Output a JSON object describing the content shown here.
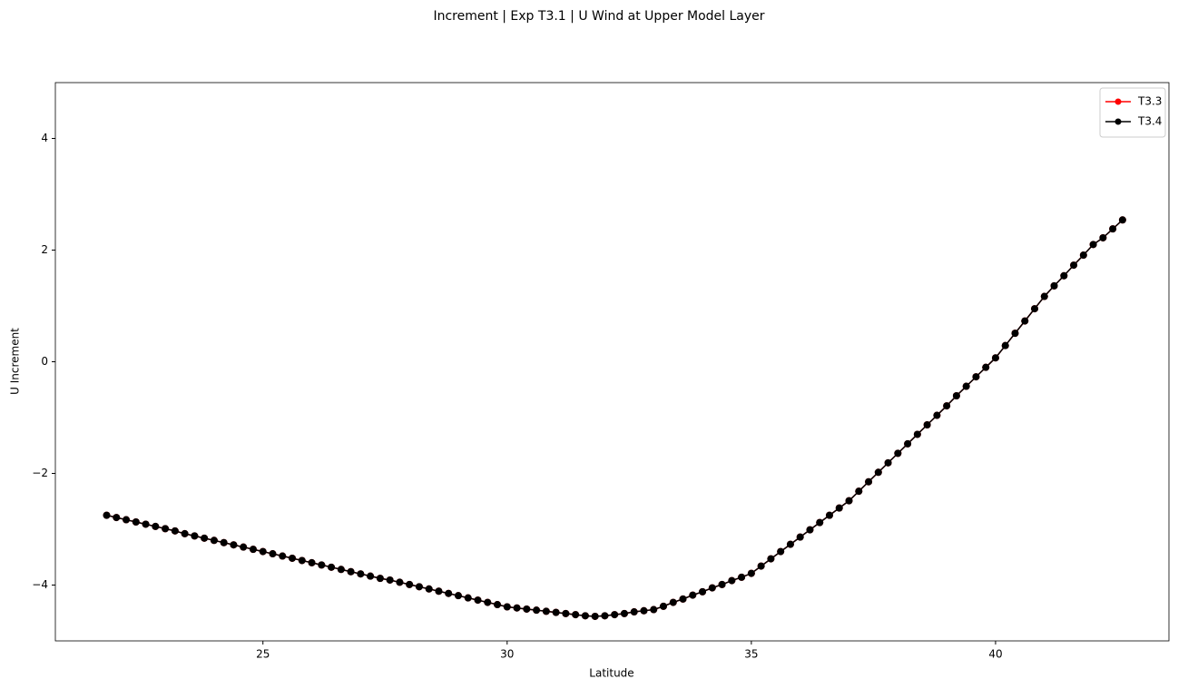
{
  "chart_data": {
    "type": "line",
    "title": "Increment | Exp T3.1 | U Wind at Upper Model Layer",
    "xlabel": "Latitude",
    "ylabel": "U Increment",
    "x": [
      21.8,
      22.0,
      22.2,
      22.4,
      22.6,
      22.8,
      23.0,
      23.2,
      23.4,
      23.6,
      23.8,
      24.0,
      24.2,
      24.4,
      24.6,
      24.8,
      25.0,
      25.2,
      25.4,
      25.6,
      25.8,
      26.0,
      26.2,
      26.4,
      26.6,
      26.8,
      27.0,
      27.2,
      27.4,
      27.6,
      27.8,
      28.0,
      28.2,
      28.4,
      28.6,
      28.8,
      29.0,
      29.2,
      29.4,
      29.6,
      29.8,
      30.0,
      30.2,
      30.4,
      30.6,
      30.8,
      31.0,
      31.2,
      31.4,
      31.6,
      31.8,
      32.0,
      32.2,
      32.4,
      32.6,
      32.8,
      33.0,
      33.2,
      33.4,
      33.6,
      33.8,
      34.0,
      34.2,
      34.4,
      34.6,
      34.8,
      35.0,
      35.2,
      35.4,
      35.6,
      35.8,
      36.0,
      36.2,
      36.4,
      36.6,
      36.8,
      37.0,
      37.2,
      37.4,
      37.6,
      37.8,
      38.0,
      38.2,
      38.4,
      38.6,
      38.8,
      39.0,
      39.2,
      39.4,
      39.6,
      39.8,
      40.0,
      40.2,
      40.4,
      40.6,
      40.8,
      41.0,
      41.2,
      41.4,
      41.6,
      41.8,
      42.0,
      42.2,
      42.4,
      42.6
    ],
    "series": [
      {
        "name": "T3.3",
        "color": "#ff0000",
        "values": [
          -2.75,
          -2.79,
          -2.83,
          -2.87,
          -2.91,
          -2.95,
          -2.99,
          -3.03,
          -3.08,
          -3.12,
          -3.16,
          -3.2,
          -3.24,
          -3.28,
          -3.32,
          -3.36,
          -3.4,
          -3.44,
          -3.48,
          -3.52,
          -3.56,
          -3.6,
          -3.64,
          -3.68,
          -3.72,
          -3.76,
          -3.8,
          -3.84,
          -3.88,
          -3.91,
          -3.95,
          -3.99,
          -4.03,
          -4.07,
          -4.11,
          -4.15,
          -4.19,
          -4.23,
          -4.27,
          -4.31,
          -4.35,
          -4.39,
          -4.41,
          -4.43,
          -4.45,
          -4.47,
          -4.49,
          -4.51,
          -4.53,
          -4.55,
          -4.56,
          -4.55,
          -4.53,
          -4.51,
          -4.48,
          -4.46,
          -4.44,
          -4.38,
          -4.31,
          -4.25,
          -4.18,
          -4.12,
          -4.05,
          -3.99,
          -3.92,
          -3.86,
          -3.79,
          -3.66,
          -3.53,
          -3.4,
          -3.27,
          -3.14,
          -3.01,
          -2.88,
          -2.75,
          -2.62,
          -2.49,
          -2.32,
          -2.15,
          -1.98,
          -1.81,
          -1.64,
          -1.47,
          -1.3,
          -1.13,
          -0.96,
          -0.79,
          -0.61,
          -0.44,
          -0.27,
          -0.1,
          0.07,
          0.29,
          0.51,
          0.73,
          0.95,
          1.17,
          1.36,
          1.54,
          1.73,
          1.91,
          2.1,
          2.22,
          2.38,
          2.54
        ]
      },
      {
        "name": "T3.4",
        "color": "#000000",
        "values": [
          -2.75,
          -2.79,
          -2.83,
          -2.87,
          -2.91,
          -2.95,
          -2.99,
          -3.03,
          -3.08,
          -3.12,
          -3.16,
          -3.2,
          -3.24,
          -3.28,
          -3.32,
          -3.36,
          -3.4,
          -3.44,
          -3.48,
          -3.52,
          -3.56,
          -3.6,
          -3.64,
          -3.68,
          -3.72,
          -3.76,
          -3.8,
          -3.84,
          -3.88,
          -3.91,
          -3.95,
          -3.99,
          -4.03,
          -4.07,
          -4.11,
          -4.15,
          -4.19,
          -4.23,
          -4.27,
          -4.31,
          -4.35,
          -4.39,
          -4.41,
          -4.43,
          -4.45,
          -4.47,
          -4.49,
          -4.51,
          -4.53,
          -4.55,
          -4.56,
          -4.55,
          -4.53,
          -4.51,
          -4.48,
          -4.46,
          -4.44,
          -4.38,
          -4.31,
          -4.25,
          -4.18,
          -4.12,
          -4.05,
          -3.99,
          -3.92,
          -3.86,
          -3.79,
          -3.66,
          -3.53,
          -3.4,
          -3.27,
          -3.14,
          -3.01,
          -2.88,
          -2.75,
          -2.62,
          -2.49,
          -2.32,
          -2.15,
          -1.98,
          -1.81,
          -1.64,
          -1.47,
          -1.3,
          -1.13,
          -0.96,
          -0.79,
          -0.61,
          -0.44,
          -0.27,
          -0.1,
          0.07,
          0.29,
          0.51,
          0.73,
          0.95,
          1.17,
          1.36,
          1.54,
          1.73,
          1.91,
          2.1,
          2.22,
          2.38,
          2.54
        ]
      }
    ],
    "xlim": [
      20.75,
      43.55
    ],
    "ylim": [
      -5,
      5
    ],
    "xticks": [
      25,
      30,
      35,
      40
    ],
    "yticks": [
      {
        "value": -4,
        "label": "−4"
      },
      {
        "value": -2,
        "label": "−2"
      },
      0,
      2,
      4
    ],
    "legend": "upper right",
    "markers": true
  }
}
